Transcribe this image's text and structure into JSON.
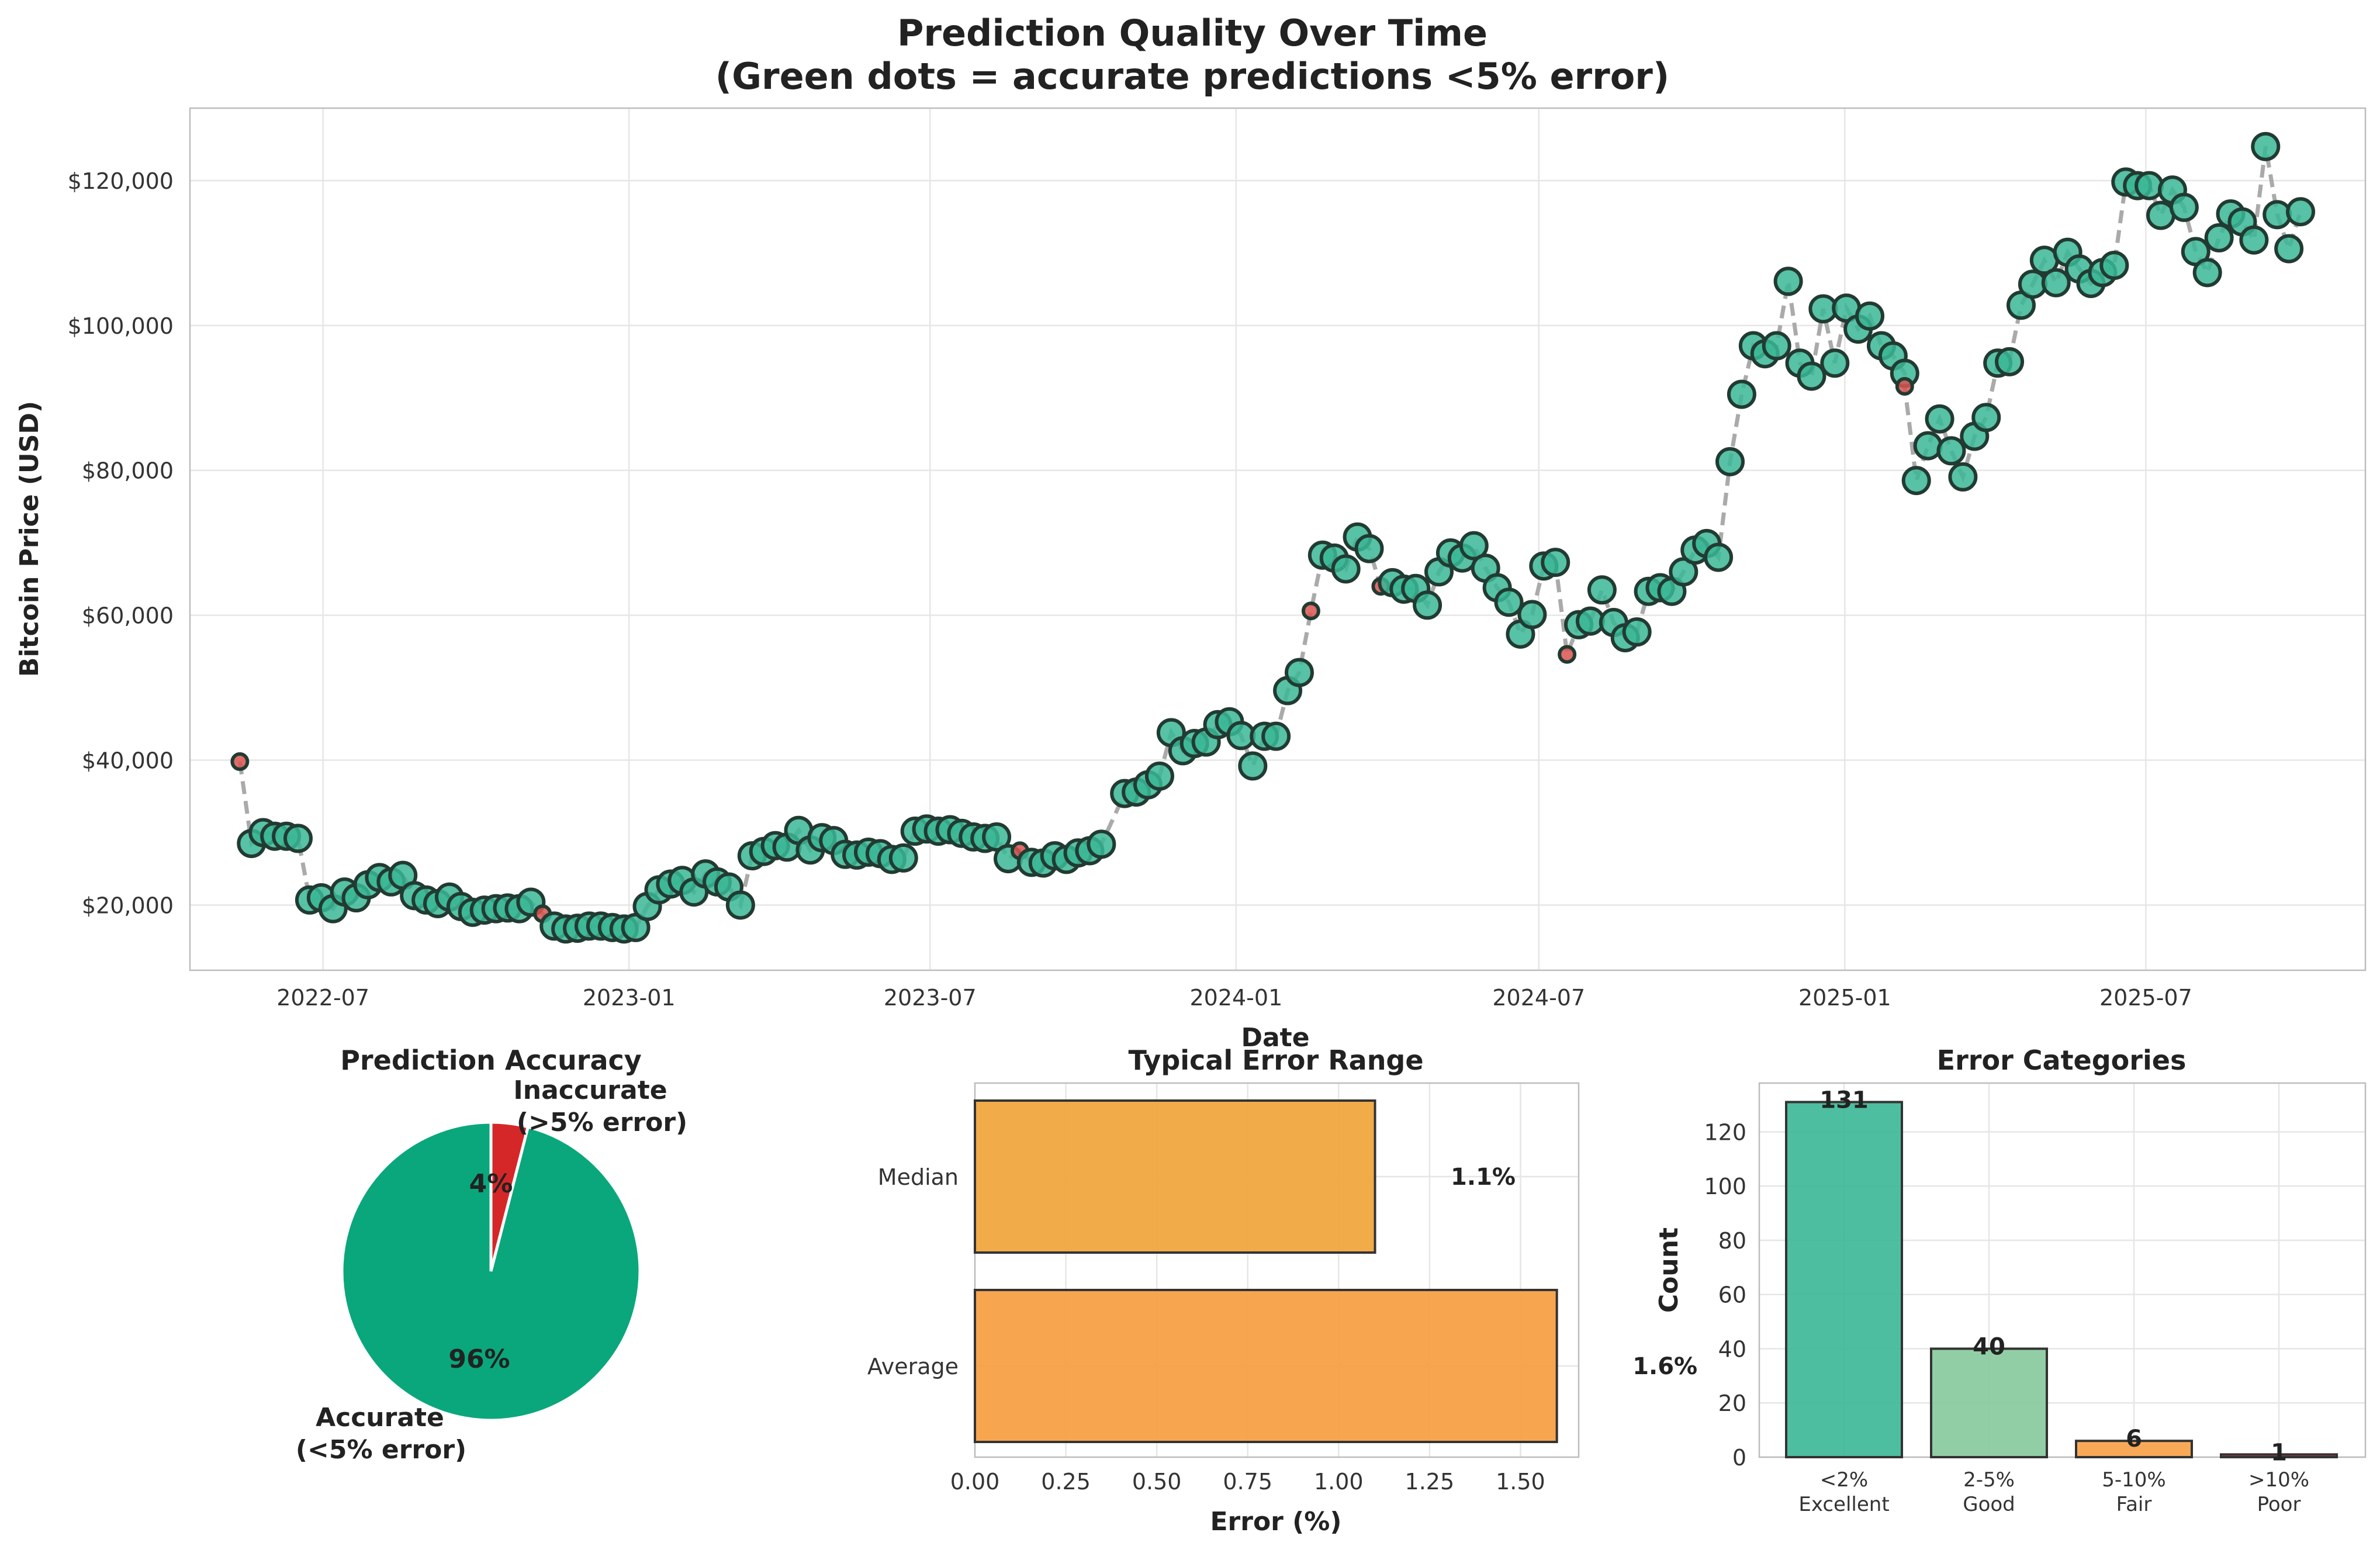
{
  "chart_data": [
    {
      "type": "scatter",
      "title_line1": "Prediction Quality Over Time",
      "title_line2": "(Green dots = accurate predictions <5% error)",
      "xlabel": "Date",
      "ylabel": "Bitcoin Price (USD)",
      "x_ticks": [
        "2022-07",
        "2023-01",
        "2023-07",
        "2024-01",
        "2024-07",
        "2025-01",
        "2025-07"
      ],
      "y_ticks": [
        "$20,000",
        "$40,000",
        "$60,000",
        "$80,000",
        "$100,000",
        "$120,000"
      ],
      "ylim": [
        11000,
        130000
      ],
      "grid": true,
      "series": [
        {
          "name": "Accurate",
          "color": "#3ab795",
          "points": [
            [
              "2022-05-19",
              28500
            ],
            [
              "2022-05-26",
              30000
            ],
            [
              "2022-06-02",
              29500
            ],
            [
              "2022-06-09",
              29500
            ],
            [
              "2022-06-16",
              29200
            ],
            [
              "2022-06-23",
              20700
            ],
            [
              "2022-06-30",
              21000
            ],
            [
              "2022-07-07",
              19500
            ],
            [
              "2022-07-14",
              21800
            ],
            [
              "2022-07-21",
              21000
            ],
            [
              "2022-07-28",
              22800
            ],
            [
              "2022-08-04",
              23800
            ],
            [
              "2022-08-11",
              23200
            ],
            [
              "2022-08-18",
              24100
            ],
            [
              "2022-08-25",
              21300
            ],
            [
              "2022-09-01",
              20700
            ],
            [
              "2022-09-08",
              20200
            ],
            [
              "2022-09-15",
              21100
            ],
            [
              "2022-09-22",
              19800
            ],
            [
              "2022-09-29",
              19000
            ],
            [
              "2022-10-06",
              19300
            ],
            [
              "2022-10-13",
              19500
            ],
            [
              "2022-10-20",
              19600
            ],
            [
              "2022-10-27",
              19500
            ],
            [
              "2022-11-03",
              20400
            ],
            [
              "2022-11-17",
              17100
            ],
            [
              "2022-11-24",
              16700
            ],
            [
              "2022-12-01",
              16800
            ],
            [
              "2022-12-08",
              17100
            ],
            [
              "2022-12-15",
              17100
            ],
            [
              "2022-12-22",
              16900
            ],
            [
              "2022-12-29",
              16700
            ],
            [
              "2023-01-05",
              16900
            ],
            [
              "2023-01-12",
              19800
            ],
            [
              "2023-01-19",
              22100
            ],
            [
              "2023-01-26",
              22900
            ],
            [
              "2023-02-02",
              23400
            ],
            [
              "2023-02-09",
              21800
            ],
            [
              "2023-02-16",
              24300
            ],
            [
              "2023-02-23",
              23200
            ],
            [
              "2023-03-02",
              22500
            ],
            [
              "2023-03-09",
              20000
            ],
            [
              "2023-03-16",
              26800
            ],
            [
              "2023-03-23",
              27400
            ],
            [
              "2023-03-30",
              28200
            ],
            [
              "2023-04-06",
              28000
            ],
            [
              "2023-04-13",
              30300
            ],
            [
              "2023-04-20",
              27600
            ],
            [
              "2023-04-27",
              29300
            ],
            [
              "2023-05-04",
              28900
            ],
            [
              "2023-05-11",
              27000
            ],
            [
              "2023-05-18",
              26900
            ],
            [
              "2023-05-25",
              27300
            ],
            [
              "2023-06-01",
              27100
            ],
            [
              "2023-06-08",
              26300
            ],
            [
              "2023-06-15",
              26500
            ],
            [
              "2023-06-22",
              30200
            ],
            [
              "2023-06-29",
              30500
            ],
            [
              "2023-07-06",
              30200
            ],
            [
              "2023-07-13",
              30400
            ],
            [
              "2023-07-20",
              29900
            ],
            [
              "2023-07-27",
              29400
            ],
            [
              "2023-08-03",
              29200
            ],
            [
              "2023-08-10",
              29400
            ],
            [
              "2023-08-17",
              26400
            ],
            [
              "2023-08-31",
              25900
            ],
            [
              "2023-09-07",
              25800
            ],
            [
              "2023-09-14",
              26800
            ],
            [
              "2023-09-21",
              26300
            ],
            [
              "2023-09-28",
              27200
            ],
            [
              "2023-10-05",
              27500
            ],
            [
              "2023-10-12",
              28400
            ],
            [
              "2023-10-26",
              35400
            ],
            [
              "2023-11-02",
              35600
            ],
            [
              "2023-11-09",
              36600
            ],
            [
              "2023-11-16",
              37800
            ],
            [
              "2023-11-23",
              43800
            ],
            [
              "2023-11-30",
              41300
            ],
            [
              "2023-12-07",
              42300
            ],
            [
              "2023-12-14",
              42500
            ],
            [
              "2023-12-21",
              44900
            ],
            [
              "2023-12-28",
              45300
            ],
            [
              "2024-01-04",
              43400
            ],
            [
              "2024-01-11",
              39200
            ],
            [
              "2024-01-18",
              43300
            ],
            [
              "2024-01-25",
              43300
            ],
            [
              "2024-02-01",
              49600
            ],
            [
              "2024-02-08",
              52100
            ],
            [
              "2024-02-22",
              68300
            ],
            [
              "2024-02-29",
              67900
            ],
            [
              "2024-03-07",
              66400
            ],
            [
              "2024-03-14",
              70800
            ],
            [
              "2024-03-21",
              69200
            ],
            [
              "2024-04-04",
              64500
            ],
            [
              "2024-04-11",
              63600
            ],
            [
              "2024-04-18",
              63700
            ],
            [
              "2024-04-25",
              61400
            ],
            [
              "2024-05-02",
              66000
            ],
            [
              "2024-05-09",
              68600
            ],
            [
              "2024-05-16",
              67900
            ],
            [
              "2024-05-23",
              69600
            ],
            [
              "2024-05-30",
              66500
            ],
            [
              "2024-06-06",
              63800
            ],
            [
              "2024-06-13",
              61800
            ],
            [
              "2024-06-20",
              57400
            ],
            [
              "2024-06-27",
              60100
            ],
            [
              "2024-07-04",
              66800
            ],
            [
              "2024-07-11",
              67300
            ],
            [
              "2024-07-25",
              58700
            ],
            [
              "2024-08-01",
              59200
            ],
            [
              "2024-08-08",
              63500
            ],
            [
              "2024-08-15",
              59000
            ],
            [
              "2024-08-22",
              56900
            ],
            [
              "2024-08-29",
              57700
            ],
            [
              "2024-09-05",
              63300
            ],
            [
              "2024-09-12",
              63800
            ],
            [
              "2024-09-19",
              63300
            ],
            [
              "2024-09-26",
              66000
            ],
            [
              "2024-10-03",
              69000
            ],
            [
              "2024-10-10",
              69900
            ],
            [
              "2024-10-17",
              68000
            ],
            [
              "2024-10-24",
              81200
            ],
            [
              "2024-10-31",
              90500
            ],
            [
              "2024-11-07",
              97200
            ],
            [
              "2024-11-14",
              96100
            ],
            [
              "2024-11-21",
              97200
            ],
            [
              "2024-11-28",
              106100
            ],
            [
              "2024-12-05",
              94800
            ],
            [
              "2024-12-12",
              93000
            ],
            [
              "2024-12-19",
              102300
            ],
            [
              "2024-12-26",
              94800
            ],
            [
              "2025-01-02",
              102400
            ],
            [
              "2025-01-09",
              99500
            ],
            [
              "2025-01-16",
              101300
            ],
            [
              "2025-01-23",
              97200
            ],
            [
              "2025-01-30",
              95800
            ],
            [
              "2025-02-06",
              93400
            ],
            [
              "2025-02-13",
              78600
            ],
            [
              "2025-02-20",
              83400
            ],
            [
              "2025-02-27",
              87100
            ],
            [
              "2025-03-06",
              82700
            ],
            [
              "2025-03-13",
              79100
            ],
            [
              "2025-03-20",
              84700
            ],
            [
              "2025-03-27",
              87300
            ],
            [
              "2025-04-03",
              94800
            ],
            [
              "2025-04-10",
              95000
            ],
            [
              "2025-04-17",
              102800
            ],
            [
              "2025-04-24",
              105700
            ],
            [
              "2025-05-01",
              109000
            ],
            [
              "2025-05-08",
              105900
            ],
            [
              "2025-05-15",
              110100
            ],
            [
              "2025-05-22",
              107800
            ],
            [
              "2025-05-29",
              105800
            ],
            [
              "2025-06-05",
              107300
            ],
            [
              "2025-06-12",
              108300
            ],
            [
              "2025-06-19",
              119800
            ],
            [
              "2025-06-26",
              119300
            ],
            [
              "2025-07-03",
              119300
            ],
            [
              "2025-07-10",
              115200
            ],
            [
              "2025-07-17",
              118700
            ],
            [
              "2025-07-24",
              116300
            ],
            [
              "2025-07-31",
              110200
            ],
            [
              "2025-08-07",
              107300
            ],
            [
              "2025-08-14",
              112100
            ],
            [
              "2025-08-21",
              115400
            ],
            [
              "2025-08-28",
              114300
            ],
            [
              "2025-09-04",
              111800
            ],
            [
              "2025-09-11",
              124700
            ],
            [
              "2025-09-18",
              115300
            ],
            [
              "2025-09-25",
              110600
            ],
            [
              "2025-10-02",
              115700
            ]
          ]
        },
        {
          "name": "Inaccurate",
          "color": "#d9534f",
          "points": [
            [
              "2022-05-12",
              39800
            ],
            [
              "2022-11-10",
              18800
            ],
            [
              "2023-08-24",
              27500
            ],
            [
              "2024-02-15",
              60600
            ],
            [
              "2024-03-28",
              64000
            ],
            [
              "2024-07-18",
              54600
            ],
            [
              "2025-02-06",
              91600
            ]
          ]
        }
      ]
    },
    {
      "type": "pie",
      "title": "Prediction Accuracy",
      "slices": [
        {
          "label_line1": "Accurate",
          "label_line2": "(<5% error)",
          "value": 96,
          "pct_label": "96%",
          "color": "#0aa77c"
        },
        {
          "label_line1": "Inaccurate",
          "label_line2": "(>5% error)",
          "value": 4,
          "pct_label": "4%",
          "color": "#d62728"
        }
      ]
    },
    {
      "type": "bar",
      "orientation": "horizontal",
      "title": "Typical Error Range",
      "xlabel": "Error (%)",
      "categories": [
        "Median",
        "Average"
      ],
      "values": [
        1.1,
        1.6
      ],
      "value_labels": [
        "1.1%",
        "1.6%"
      ],
      "colors": [
        "#f0a73f",
        "#f7a046"
      ],
      "xlim": [
        0,
        1.66
      ],
      "x_ticks": [
        "0.00",
        "0.25",
        "0.50",
        "0.75",
        "1.00",
        "1.25",
        "1.50"
      ]
    },
    {
      "type": "bar",
      "title": "Error Categories",
      "ylabel": "Count",
      "categories_line1": [
        "<2%",
        "2-5%",
        "5-10%",
        ">10%"
      ],
      "categories_line2": [
        "Excellent",
        "Good",
        "Fair",
        "Poor"
      ],
      "values": [
        131,
        40,
        6,
        1
      ],
      "value_labels": [
        "131",
        "40",
        "6",
        "1"
      ],
      "colors": [
        "#3ab795",
        "#86c99b",
        "#f7a046",
        "#d62728"
      ],
      "ylim": [
        0,
        138
      ],
      "y_ticks": [
        "0",
        "20",
        "40",
        "60",
        "80",
        "100",
        "120"
      ]
    }
  ]
}
